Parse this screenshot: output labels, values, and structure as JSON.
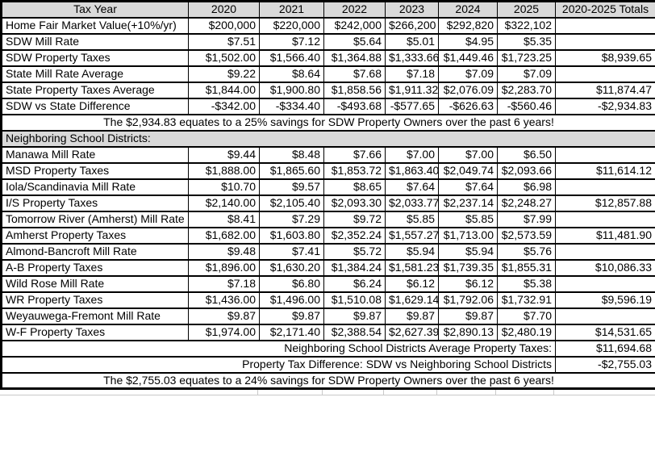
{
  "page": {
    "background": "#ffffff",
    "colors": {
      "header_fill": "#d9d9d9",
      "section_fill": "#d9d9d9",
      "grid_border": "#000000",
      "text": "#000000",
      "ghost_gridline": "#c9c9c9"
    }
  },
  "chart_data": {
    "type": "table",
    "columns": [
      "Tax Year",
      "2020",
      "2021",
      "2022",
      "2023",
      "2024",
      "2025",
      "2020-2025 Totals"
    ],
    "rows": [
      {
        "kind": "data",
        "bold": false,
        "label": "Home Fair Market Value(+10%/yr)",
        "values": [
          "$200,000",
          "$220,000",
          "$242,000",
          "$266,200",
          "$292,820",
          "$322,102"
        ],
        "total": ""
      },
      {
        "kind": "data",
        "bold": false,
        "label": "SDW Mill Rate",
        "values": [
          "$7.51",
          "$7.12",
          "$5.64",
          "$5.01",
          "$4.95",
          "$5.35"
        ],
        "total": ""
      },
      {
        "kind": "data",
        "bold": false,
        "label": "SDW Property Taxes",
        "values": [
          "$1,502.00",
          "$1,566.40",
          "$1,364.88",
          "$1,333.66",
          "$1,449.46",
          "$1,723.25"
        ],
        "total": "$8,939.65"
      },
      {
        "kind": "data",
        "bold": false,
        "label": "State Mill Rate Average",
        "values": [
          "$9.22",
          "$8.64",
          "$7.68",
          "$7.18",
          "$7.09",
          "$7.09"
        ],
        "total": ""
      },
      {
        "kind": "data",
        "bold": false,
        "label": "State Property Taxes Average",
        "values": [
          "$1,844.00",
          "$1,900.80",
          "$1,858.56",
          "$1,911.32",
          "$2,076.09",
          "$2,283.70"
        ],
        "total": "$11,874.47"
      },
      {
        "kind": "data",
        "bold": true,
        "label": "SDW vs State Difference",
        "values": [
          "-$342.00",
          "-$334.40",
          "-$493.68",
          "-$577.65",
          "-$626.63",
          "-$560.46"
        ],
        "total": "-$2,934.83"
      },
      {
        "kind": "banner",
        "bold": true,
        "label": "The $2,934.83 equates to a 25% savings for SDW Property Owners over the past 6 years!"
      },
      {
        "kind": "section",
        "bold": false,
        "label": "Neighboring School Districts:"
      },
      {
        "kind": "data",
        "bold": false,
        "label": "Manawa Mill Rate",
        "values": [
          "$9.44",
          "$8.48",
          "$7.66",
          "$7.00",
          "$7.00",
          "$6.50"
        ],
        "total": ""
      },
      {
        "kind": "data",
        "bold": false,
        "label": "MSD Property Taxes",
        "values": [
          "$1,888.00",
          "$1,865.60",
          "$1,853.72",
          "$1,863.40",
          "$2,049.74",
          "$2,093.66"
        ],
        "total": "$11,614.12"
      },
      {
        "kind": "data",
        "bold": false,
        "label": "Iola/Scandinavia Mill Rate",
        "values": [
          "$10.70",
          "$9.57",
          "$8.65",
          "$7.64",
          "$7.64",
          "$6.98"
        ],
        "total": ""
      },
      {
        "kind": "data",
        "bold": false,
        "label": "I/S Property Taxes",
        "values": [
          "$2,140.00",
          "$2,105.40",
          "$2,093.30",
          "$2,033.77",
          "$2,237.14",
          "$2,248.27"
        ],
        "total": "$12,857.88"
      },
      {
        "kind": "data",
        "bold": false,
        "label": "Tomorrow River (Amherst) Mill Rate",
        "values": [
          "$8.41",
          "$7.29",
          "$9.72",
          "$5.85",
          "$5.85",
          "$7.99"
        ],
        "total": ""
      },
      {
        "kind": "data",
        "bold": false,
        "label": "Amherst Property Taxes",
        "values": [
          "$1,682.00",
          "$1,603.80",
          "$2,352.24",
          "$1,557.27",
          "$1,713.00",
          "$2,573.59"
        ],
        "total": "$11,481.90"
      },
      {
        "kind": "data",
        "bold": false,
        "label": "Almond-Bancroft Mill Rate",
        "values": [
          "$9.48",
          "$7.41",
          "$5.72",
          "$5.94",
          "$5.94",
          "$5.76"
        ],
        "total": ""
      },
      {
        "kind": "data",
        "bold": false,
        "label": "A-B Property Taxes",
        "values": [
          "$1,896.00",
          "$1,630.20",
          "$1,384.24",
          "$1,581.23",
          "$1,739.35",
          "$1,855.31"
        ],
        "total": "$10,086.33"
      },
      {
        "kind": "data",
        "bold": false,
        "label": "Wild Rose Mill Rate",
        "values": [
          "$7.18",
          "$6.80",
          "$6.24",
          "$6.12",
          "$6.12",
          "$5.38"
        ],
        "total": ""
      },
      {
        "kind": "data",
        "bold": false,
        "label": "WR Property Taxes",
        "values": [
          "$1,436.00",
          "$1,496.00",
          "$1,510.08",
          "$1,629.14",
          "$1,792.06",
          "$1,732.91"
        ],
        "total": "$9,596.19"
      },
      {
        "kind": "data",
        "bold": false,
        "label": "Weyauwega-Fremont Mill Rate",
        "values": [
          "$9.87",
          "$9.87",
          "$9.87",
          "$9.87",
          "$9.87",
          "$7.70"
        ],
        "total": ""
      },
      {
        "kind": "data",
        "bold": false,
        "label": "W-F Property Taxes",
        "values": [
          "$1,974.00",
          "$2,171.40",
          "$2,388.54",
          "$2,627.39",
          "$2,890.13",
          "$2,480.19"
        ],
        "total": "$14,531.65"
      },
      {
        "kind": "summary",
        "bold": false,
        "label": "Neighboring School Districts Average Property Taxes:",
        "total": "$11,694.68"
      },
      {
        "kind": "summary",
        "bold": true,
        "label": "Property Tax Difference: SDW vs Neighboring School Districts",
        "total": "-$2,755.03"
      },
      {
        "kind": "banner",
        "bold": true,
        "label": "The $2,755.03 equates to a 24% savings for SDW Property Owners over the past 6 years!"
      }
    ]
  }
}
